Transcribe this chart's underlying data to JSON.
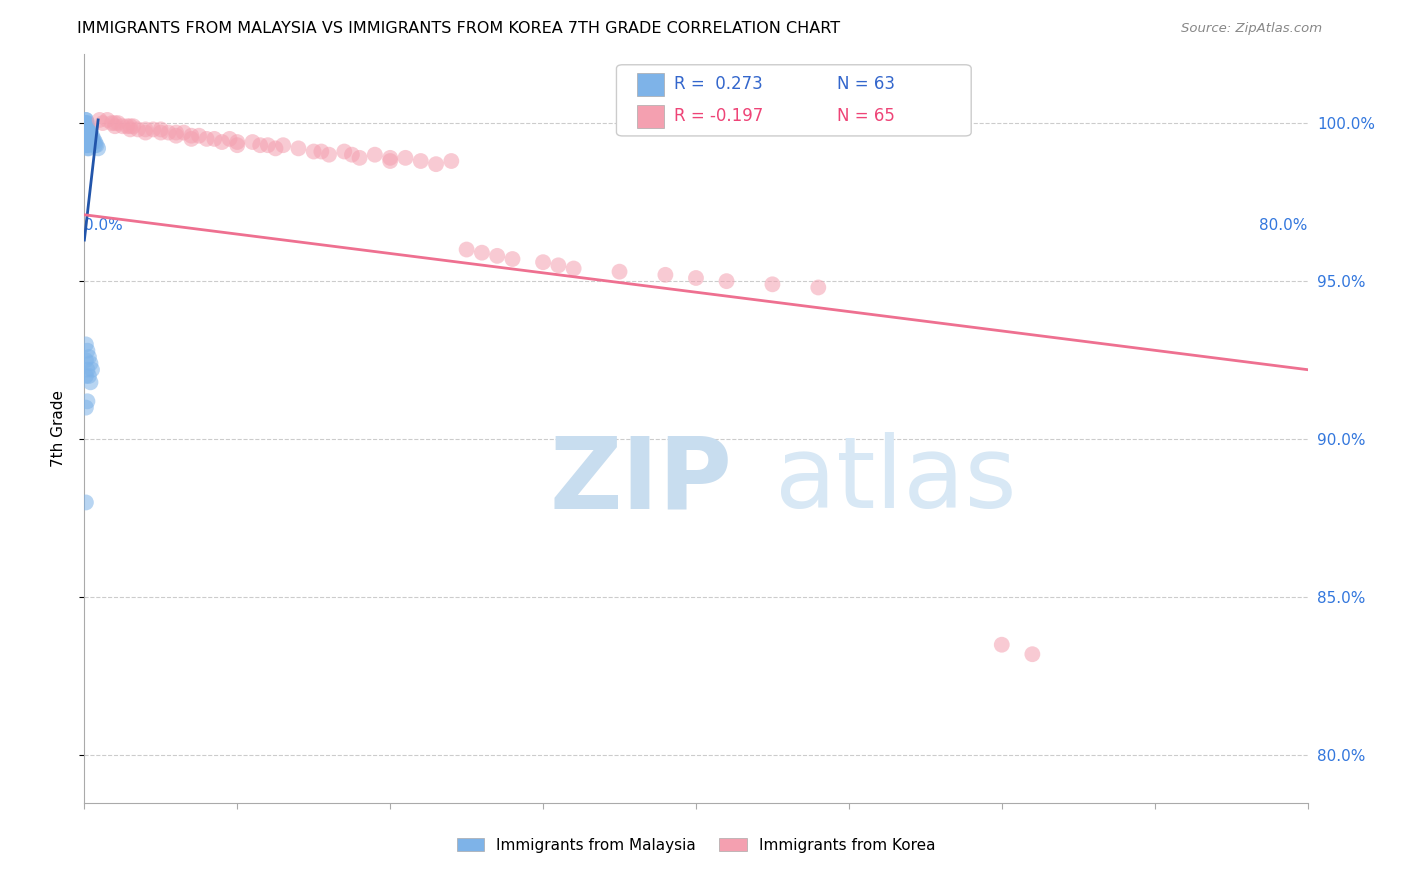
{
  "title": "IMMIGRANTS FROM MALAYSIA VS IMMIGRANTS FROM KOREA 7TH GRADE CORRELATION CHART",
  "source": "Source: ZipAtlas.com",
  "ylabel": "7th Grade",
  "ytick_labels": [
    "80.0%",
    "85.0%",
    "90.0%",
    "95.0%",
    "100.0%"
  ],
  "ytick_values": [
    0.8,
    0.85,
    0.9,
    0.95,
    1.0
  ],
  "xmin": 0.0,
  "xmax": 0.8,
  "ymin": 0.785,
  "ymax": 1.022,
  "r_malaysia": 0.273,
  "n_malaysia": 63,
  "r_korea": -0.197,
  "n_korea": 65,
  "color_malaysia": "#7EB3E8",
  "color_korea": "#F4A0B0",
  "trendline_malaysia_color": "#2255AA",
  "trendline_korea_color": "#EE7090",
  "legend_label_malaysia": "Immigrants from Malaysia",
  "legend_label_korea": "Immigrants from Korea",
  "mal_x": [
    0.001,
    0.001,
    0.001,
    0.001,
    0.001,
    0.001,
    0.001,
    0.001,
    0.001,
    0.001,
    0.001,
    0.001,
    0.001,
    0.001,
    0.001,
    0.001,
    0.001,
    0.001,
    0.001,
    0.001,
    0.002,
    0.002,
    0.002,
    0.002,
    0.002,
    0.002,
    0.002,
    0.002,
    0.002,
    0.002,
    0.003,
    0.003,
    0.003,
    0.003,
    0.003,
    0.003,
    0.003,
    0.004,
    0.004,
    0.004,
    0.004,
    0.005,
    0.005,
    0.005,
    0.006,
    0.006,
    0.007,
    0.007,
    0.008,
    0.009,
    0.001,
    0.001,
    0.001,
    0.002,
    0.002,
    0.003,
    0.003,
    0.004,
    0.004,
    0.005,
    0.001,
    0.002,
    0.001
  ],
  "mal_y": [
    1.001,
    1.001,
    1.0,
    1.0,
    1.0,
    0.999,
    0.999,
    0.999,
    0.998,
    0.998,
    0.997,
    0.997,
    0.996,
    0.996,
    0.995,
    0.995,
    0.994,
    0.994,
    0.993,
    0.993,
    1.0,
    0.999,
    0.998,
    0.997,
    0.997,
    0.996,
    0.995,
    0.994,
    0.993,
    0.992,
    0.998,
    0.997,
    0.996,
    0.995,
    0.994,
    0.993,
    0.992,
    0.997,
    0.996,
    0.995,
    0.994,
    0.996,
    0.995,
    0.994,
    0.995,
    0.994,
    0.994,
    0.993,
    0.993,
    0.992,
    0.93,
    0.925,
    0.92,
    0.928,
    0.922,
    0.926,
    0.92,
    0.924,
    0.918,
    0.922,
    0.91,
    0.912,
    0.88
  ],
  "kor_x": [
    0.01,
    0.012,
    0.015,
    0.018,
    0.02,
    0.02,
    0.022,
    0.025,
    0.028,
    0.03,
    0.03,
    0.032,
    0.035,
    0.04,
    0.04,
    0.045,
    0.05,
    0.05,
    0.055,
    0.06,
    0.06,
    0.065,
    0.07,
    0.07,
    0.075,
    0.08,
    0.085,
    0.09,
    0.095,
    0.1,
    0.1,
    0.11,
    0.115,
    0.12,
    0.125,
    0.13,
    0.14,
    0.15,
    0.155,
    0.16,
    0.17,
    0.175,
    0.18,
    0.19,
    0.2,
    0.2,
    0.21,
    0.22,
    0.23,
    0.24,
    0.25,
    0.26,
    0.27,
    0.28,
    0.3,
    0.31,
    0.32,
    0.35,
    0.38,
    0.4,
    0.42,
    0.45,
    0.48,
    0.6,
    0.62
  ],
  "kor_y": [
    1.001,
    1.0,
    1.001,
    1.0,
    1.0,
    0.999,
    1.0,
    0.999,
    0.999,
    0.999,
    0.998,
    0.999,
    0.998,
    0.998,
    0.997,
    0.998,
    0.997,
    0.998,
    0.997,
    0.997,
    0.996,
    0.997,
    0.996,
    0.995,
    0.996,
    0.995,
    0.995,
    0.994,
    0.995,
    0.994,
    0.993,
    0.994,
    0.993,
    0.993,
    0.992,
    0.993,
    0.992,
    0.991,
    0.991,
    0.99,
    0.991,
    0.99,
    0.989,
    0.99,
    0.989,
    0.988,
    0.989,
    0.988,
    0.987,
    0.988,
    0.96,
    0.959,
    0.958,
    0.957,
    0.956,
    0.955,
    0.954,
    0.953,
    0.952,
    0.951,
    0.95,
    0.949,
    0.948,
    0.835,
    0.832
  ],
  "kor_trendline_x0": 0.0,
  "kor_trendline_x1": 0.8,
  "kor_trendline_y0": 0.971,
  "kor_trendline_y1": 0.922,
  "mal_trendline_x0": 0.0,
  "mal_trendline_x1": 0.009,
  "mal_trendline_y0": 0.963,
  "mal_trendline_y1": 1.001
}
